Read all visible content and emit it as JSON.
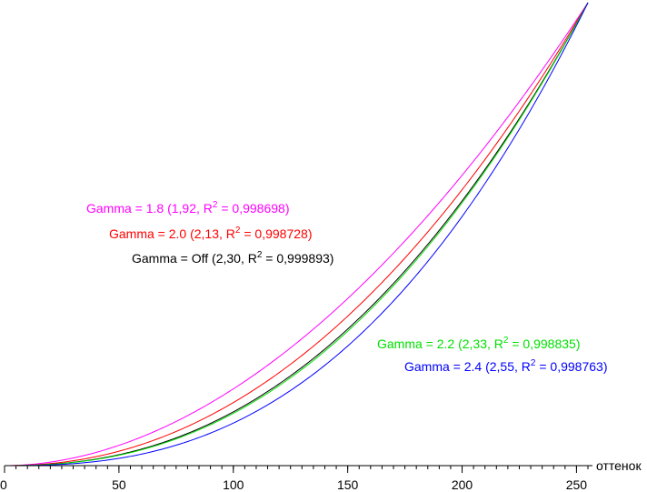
{
  "chart_data": {
    "type": "line",
    "xlabel": "оттенок",
    "xlim": [
      0,
      255
    ],
    "ylim": [
      0,
      1
    ],
    "grid": false,
    "x_ticks": [
      {
        "value": 0,
        "label": "0"
      },
      {
        "value": 50,
        "label": "50"
      },
      {
        "value": 100,
        "label": "100"
      },
      {
        "value": 150,
        "label": "150"
      },
      {
        "value": 200,
        "label": "200"
      },
      {
        "value": 250,
        "label": "250"
      }
    ],
    "x_minor_tick_step": 5,
    "series": [
      {
        "name": "Gamma = 1.8 (1,92, R² = 0,998698)",
        "label": {
          "prefix": "Gamma = 1.8 (1,92, R",
          "sup": "2",
          "suffix": " = 0,998698)"
        },
        "color": "#ff00ff",
        "exponent": 1.92
      },
      {
        "name": "Gamma = 2.0 (2,13, R² = 0,998728)",
        "label": {
          "prefix": "Gamma = 2.0 (2,13, R",
          "sup": "2",
          "suffix": " = 0,998728)"
        },
        "color": "#ff0000",
        "exponent": 2.13
      },
      {
        "name": "Gamma = Off (2,30, R² = 0,999893)",
        "label": {
          "prefix": "Gamma = Off (2,30, R",
          "sup": "2",
          "suffix": " = 0,999893)"
        },
        "color": "#000000",
        "exponent": 2.3
      },
      {
        "name": "Gamma = 2.2 (2,33, R² = 0,998835)",
        "label": {
          "prefix": "Gamma = 2.2 (2,33, R",
          "sup": "2",
          "suffix": " = 0,998835)"
        },
        "color": "#00e000",
        "exponent": 2.33
      },
      {
        "name": "Gamma = 2.4 (2,55, R² = 0,998763)",
        "label": {
          "prefix": "Gamma = 2.4 (2,55, R",
          "sup": "2",
          "suffix": " = 0,998763)"
        },
        "color": "#0000ff",
        "exponent": 2.55
      }
    ]
  }
}
